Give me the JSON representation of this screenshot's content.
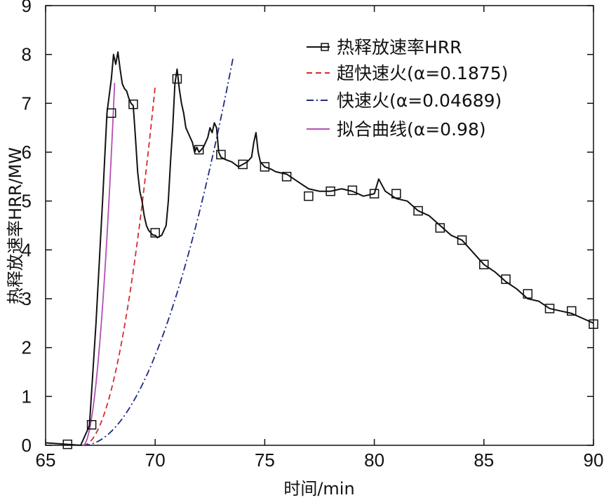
{
  "chart_data": {
    "type": "line",
    "title": "",
    "xlabel": "时间/min",
    "ylabel": "热释放速率HRR/MW",
    "xlim": [
      65,
      90
    ],
    "ylim": [
      0,
      9
    ],
    "xticks": [
      65,
      70,
      75,
      80,
      85,
      90
    ],
    "yticks": [
      0,
      1,
      2,
      3,
      4,
      5,
      6,
      7,
      8,
      9
    ],
    "legend_position": "top-right",
    "series": [
      {
        "name": "热释放速率HRR",
        "color": "#111111",
        "style": "solid-square-markers",
        "x": [
          65.0,
          66.0,
          66.6,
          67.0,
          67.3,
          67.6,
          67.8,
          68.0,
          68.1,
          68.2,
          68.3,
          68.4,
          68.5,
          68.6,
          68.7,
          68.8,
          68.9,
          69.0,
          69.1,
          69.2,
          69.3,
          69.4,
          69.5,
          69.6,
          69.7,
          69.8,
          69.9,
          70.0,
          70.1,
          70.3,
          70.5,
          70.6,
          70.7,
          70.8,
          70.9,
          71.0,
          71.1,
          71.2,
          71.3,
          71.4,
          71.5,
          71.6,
          71.7,
          71.8,
          71.9,
          72.0,
          72.1,
          72.2,
          72.4,
          72.5,
          72.6,
          72.7,
          72.8,
          72.9,
          73.0,
          73.2,
          73.5,
          73.8,
          74.0,
          74.2,
          74.4,
          74.5,
          74.6,
          74.7,
          74.8,
          75.0,
          75.3,
          75.5,
          76.0,
          76.5,
          77.0,
          77.5,
          78.0,
          78.5,
          79.0,
          79.5,
          80.0,
          80.2,
          80.5,
          81.0,
          81.5,
          82.0,
          82.5,
          83.0,
          83.5,
          84.0,
          84.5,
          85.0,
          85.5,
          86.0,
          86.5,
          87.0,
          87.5,
          88.0,
          88.5,
          89.0,
          89.5,
          90.0
        ],
        "y": [
          0.05,
          0.02,
          0.0,
          0.4,
          2.5,
          5.0,
          6.8,
          7.5,
          8.0,
          7.8,
          8.05,
          7.7,
          7.4,
          7.3,
          7.25,
          7.1,
          7.0,
          6.95,
          6.3,
          5.6,
          5.2,
          5.0,
          4.7,
          4.5,
          4.4,
          4.35,
          4.3,
          4.3,
          4.25,
          4.3,
          4.5,
          5.0,
          5.8,
          6.5,
          7.4,
          7.7,
          7.3,
          7.0,
          6.8,
          6.5,
          6.4,
          6.3,
          6.2,
          6.0,
          6.1,
          6.0,
          6.05,
          6.1,
          6.3,
          6.5,
          6.4,
          6.6,
          6.5,
          6.0,
          5.9,
          5.85,
          5.8,
          5.7,
          5.75,
          5.8,
          5.9,
          6.2,
          6.4,
          6.0,
          5.8,
          5.7,
          5.65,
          5.6,
          5.55,
          5.4,
          5.25,
          5.2,
          5.2,
          5.25,
          5.2,
          5.1,
          5.15,
          5.45,
          5.2,
          5.05,
          5.0,
          4.8,
          4.7,
          4.5,
          4.3,
          4.2,
          3.95,
          3.7,
          3.55,
          3.35,
          3.2,
          3.0,
          2.95,
          2.8,
          2.75,
          2.7,
          2.6,
          2.5
        ],
        "markers_x": [
          66.0,
          67.1,
          68.0,
          69.0,
          70.0,
          71.0,
          72.0,
          73.0,
          74.0,
          75.0,
          76.0,
          77.0,
          78.0,
          79.0,
          80.0,
          81.0,
          82.0,
          83.0,
          84.0,
          85.0,
          86.0,
          87.0,
          88.0,
          89.0,
          90.0
        ],
        "markers_y": [
          0.02,
          0.42,
          6.8,
          6.98,
          4.35,
          7.5,
          6.05,
          5.95,
          5.75,
          5.7,
          5.5,
          5.1,
          5.2,
          5.22,
          5.15,
          5.15,
          4.8,
          4.45,
          4.2,
          3.7,
          3.4,
          3.1,
          2.8,
          2.75,
          2.48
        ]
      },
      {
        "name": "超快速火(α=0.1875)",
        "color": "#d62b2b",
        "style": "dashed",
        "t0": 66.7,
        "alpha": 0.1875,
        "x_end": 70.0
      },
      {
        "name": "快速火(α=0.04689)",
        "color": "#1f2a80",
        "style": "dashdot",
        "t0": 66.7,
        "alpha": 0.04689,
        "x_end": 73.55
      },
      {
        "name": "拟合曲线(α=0.98)",
        "color": "#b44fb4",
        "style": "solid",
        "t0": 66.7,
        "alpha": 0.98,
        "x_end": 68.15
      }
    ]
  }
}
